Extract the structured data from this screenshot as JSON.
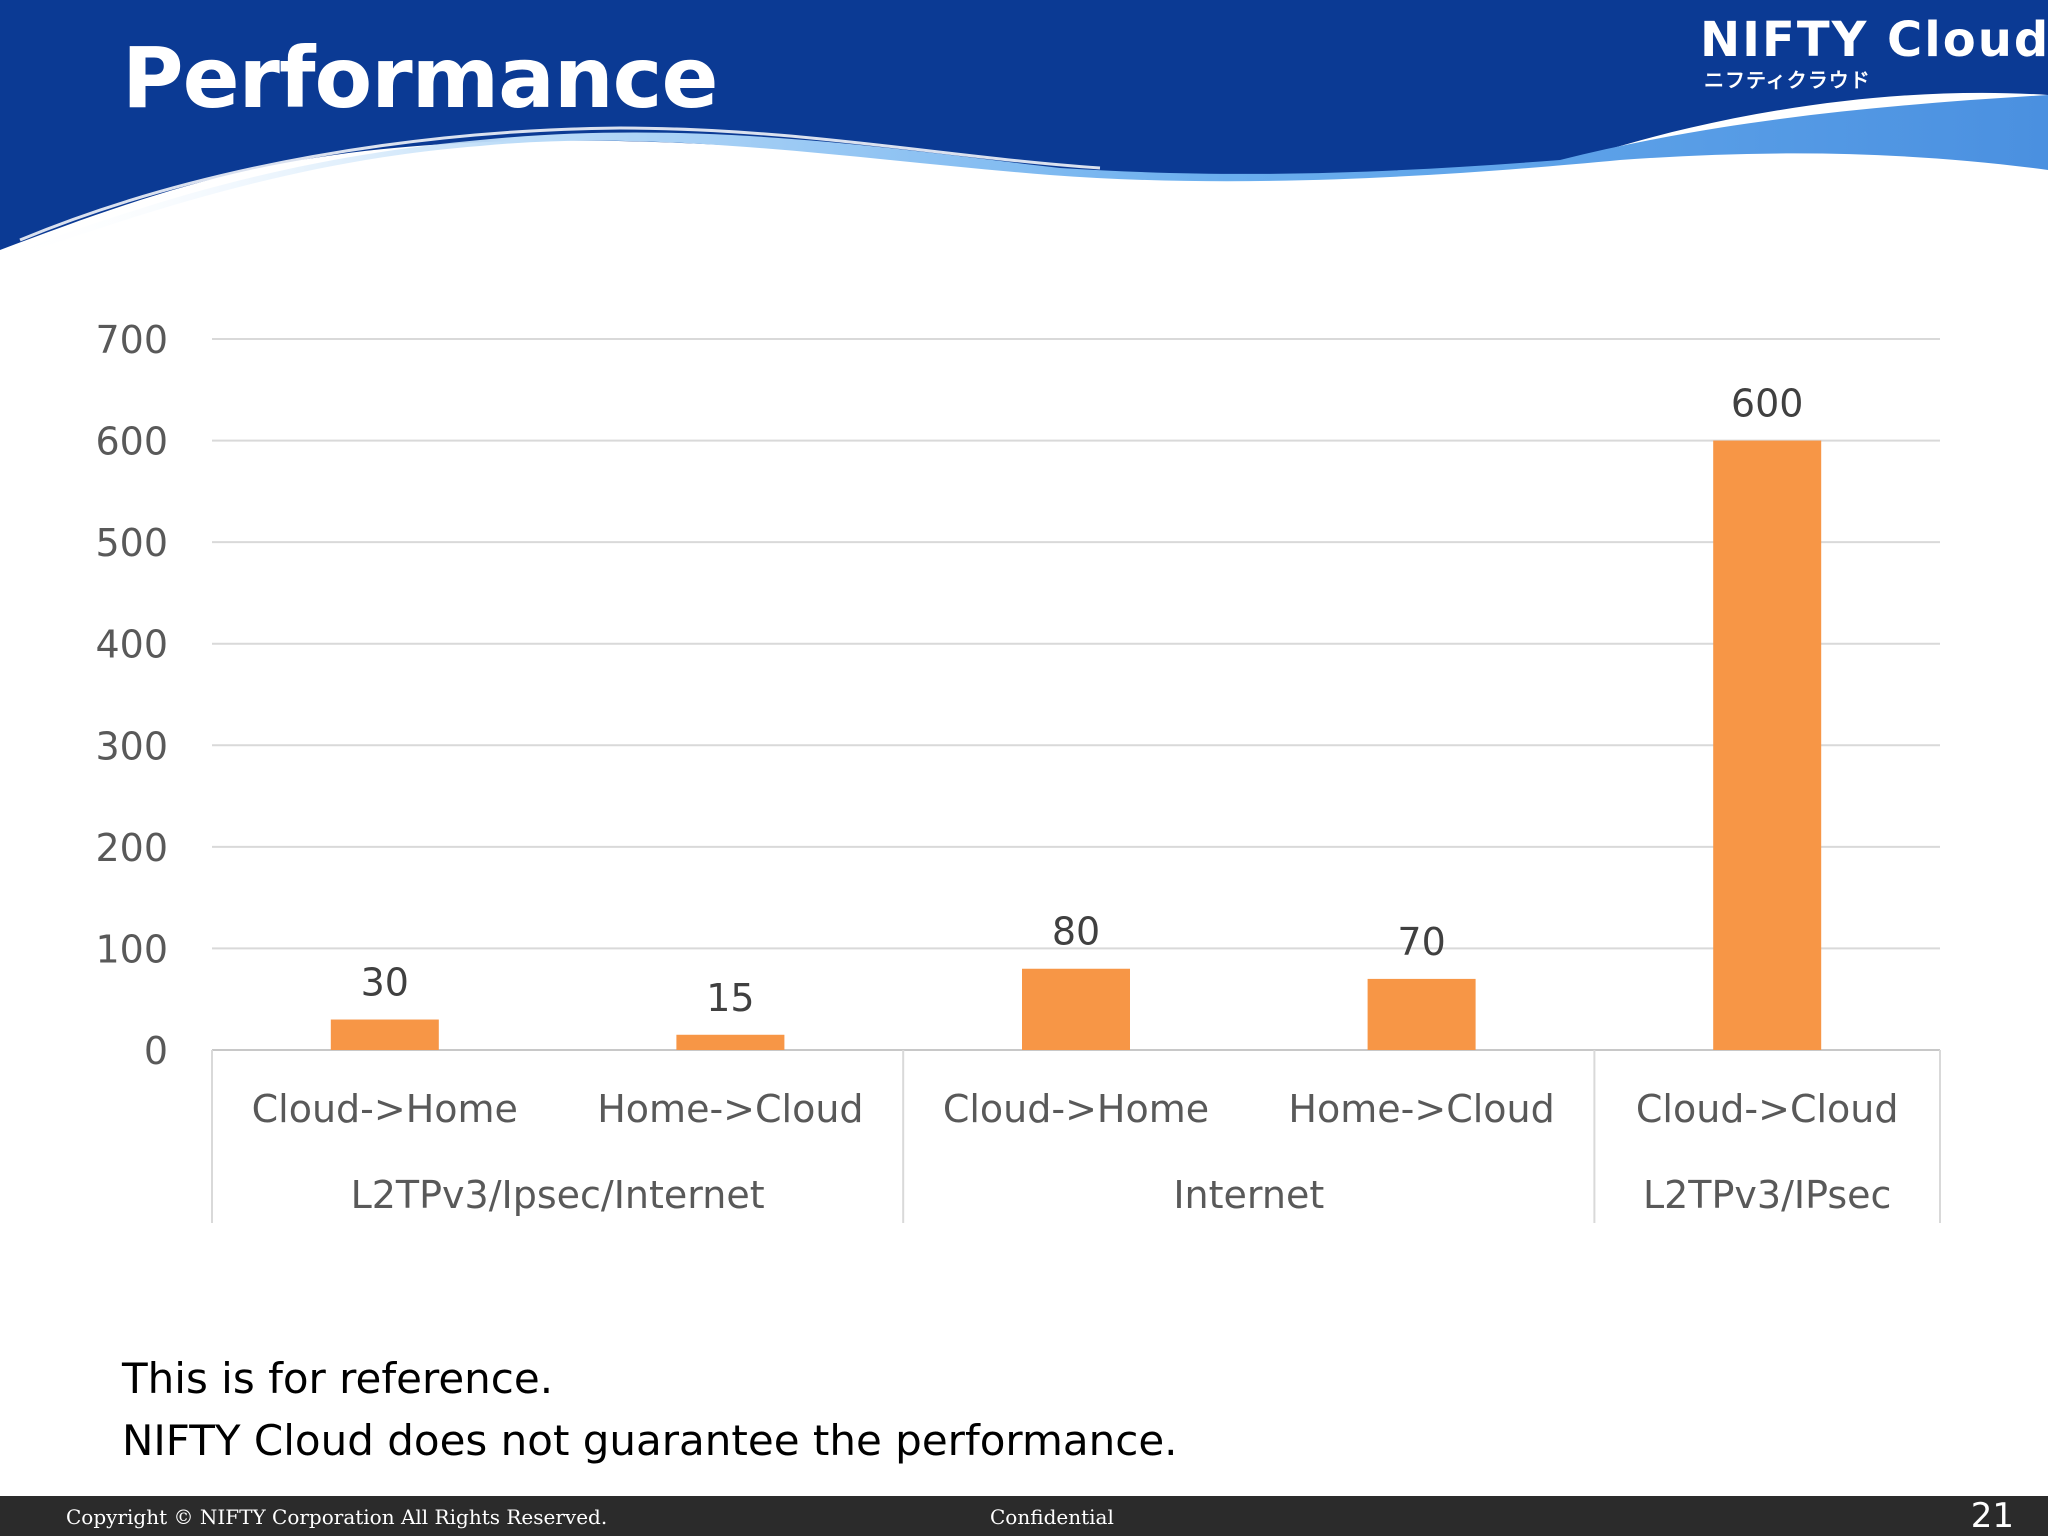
{
  "slide": {
    "title": "Performance",
    "page_number": "21"
  },
  "brand": {
    "name": "NIFTY Cloud",
    "subtitle": "ニフティクラウド",
    "header_color": "#0b3a94",
    "wave_light": "#6aaeee"
  },
  "chart_data": {
    "type": "bar",
    "title": "",
    "xlabel": "",
    "ylabel": "",
    "ylim": [
      0,
      700
    ],
    "yticks": [
      0,
      100,
      200,
      300,
      400,
      500,
      600,
      700
    ],
    "grid": true,
    "legend": "none",
    "bar_color": "#f79646",
    "categories": [
      "Cloud->Home",
      "Home->Cloud",
      "Cloud->Home",
      "Home->Cloud",
      "Cloud->Cloud"
    ],
    "groups": [
      {
        "label": "L2TPv3/Ipsec/Internet",
        "size": 2
      },
      {
        "label": "Internet",
        "size": 2
      },
      {
        "label": "L2TPv3/IPsec",
        "size": 1
      }
    ],
    "values": [
      30,
      15,
      80,
      70,
      600
    ],
    "data_labels": [
      "30",
      "15",
      "80",
      "70",
      "600"
    ]
  },
  "note": {
    "line1": "This is for reference.",
    "line2": "NIFTY Cloud does not guarantee the performance."
  },
  "footer": {
    "copyright": "Copyright © NIFTY Corporation All Rights Reserved.",
    "confidential": "Confidential"
  }
}
